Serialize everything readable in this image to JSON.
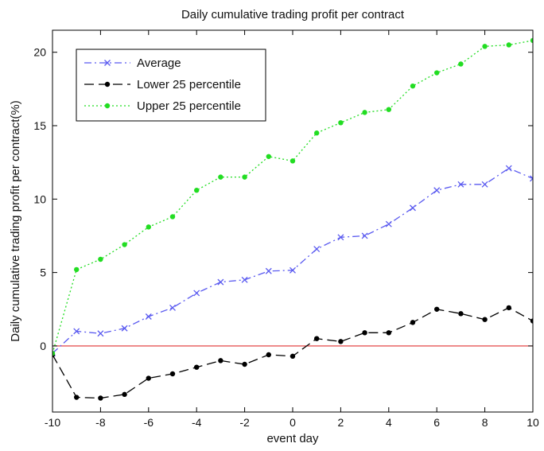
{
  "chart_data": {
    "type": "line",
    "title": "Daily cumulative trading profit per contract",
    "xlabel": "event day",
    "ylabel": "Daily cumulative trading profit per contract(%)",
    "xlim": [
      -10,
      10
    ],
    "ylim": [
      -4.5,
      21.5
    ],
    "xticks": [
      -10,
      -8,
      -6,
      -4,
      -2,
      0,
      2,
      4,
      6,
      8,
      10
    ],
    "yticks": [
      0,
      5,
      10,
      15,
      20
    ],
    "x": [
      -10,
      -9,
      -8,
      -7,
      -6,
      -5,
      -4,
      -3,
      -2,
      -1,
      0,
      1,
      2,
      3,
      4,
      5,
      6,
      7,
      8,
      9,
      10
    ],
    "reference_line": {
      "y": 0,
      "color": "#e03030"
    },
    "legend_position": "top-left",
    "grid": false,
    "series": [
      {
        "name": "Average",
        "color": "#5a5af0",
        "style": "dash-dot",
        "marker": "x",
        "values": [
          -0.5,
          1.0,
          0.85,
          1.2,
          2.0,
          2.6,
          3.6,
          4.35,
          4.5,
          5.1,
          5.15,
          6.6,
          7.4,
          7.5,
          8.3,
          9.4,
          10.6,
          11.0,
          11.0,
          12.1,
          11.4
        ]
      },
      {
        "name": "Lower 25 percentile",
        "color": "#000000",
        "style": "long-dash",
        "marker": "dot",
        "values": [
          -0.6,
          -3.5,
          -3.55,
          -3.3,
          -2.2,
          -1.9,
          -1.45,
          -1.0,
          -1.25,
          -0.6,
          -0.7,
          0.5,
          0.3,
          0.9,
          0.9,
          1.6,
          2.5,
          2.2,
          1.8,
          2.6,
          1.7
        ]
      },
      {
        "name": "Upper 25 percentile",
        "color": "#22dd22",
        "style": "dotted",
        "marker": "dot",
        "values": [
          -0.5,
          5.2,
          5.9,
          6.9,
          8.1,
          8.8,
          10.6,
          11.5,
          11.5,
          12.9,
          12.6,
          14.5,
          15.2,
          15.9,
          16.1,
          17.7,
          18.6,
          19.2,
          20.4,
          20.5,
          20.8
        ]
      }
    ]
  }
}
